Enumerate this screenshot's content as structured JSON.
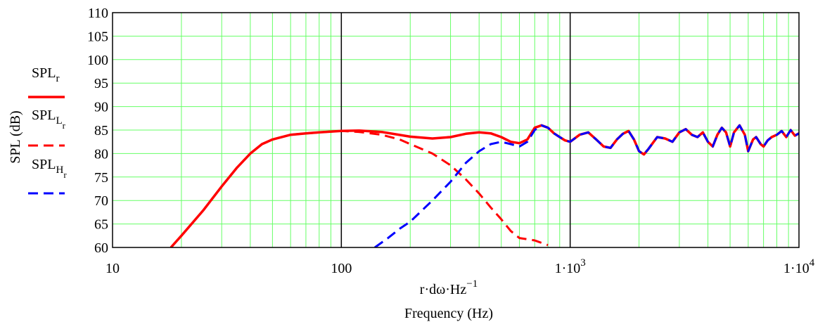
{
  "chart_data": {
    "type": "line",
    "x_scale": "log",
    "xlim": [
      10,
      10000
    ],
    "ylim": [
      60,
      110
    ],
    "grid": true,
    "x_ticks": [
      {
        "value": 10,
        "mantissa": "10",
        "exp": ""
      },
      {
        "value": 100,
        "mantissa": "100",
        "exp": ""
      },
      {
        "value": 1000,
        "mantissa": "1·10",
        "exp": "3"
      },
      {
        "value": 10000,
        "mantissa": "1·10",
        "exp": "4"
      }
    ],
    "y_ticks": [
      60,
      65,
      70,
      75,
      80,
      85,
      90,
      95,
      100,
      105,
      110
    ],
    "xlabel": {
      "expr": "r·dω·Hz",
      "exp": "−1",
      "caption": "Frequency (Hz)"
    },
    "ylabel": "SPL (dB)",
    "legend_position": "left",
    "colors": {
      "grid": "#66ff66",
      "decade": "#000000",
      "red": "#ff0000",
      "blue": "#0000ff"
    },
    "series": [
      {
        "name": "SPL_r",
        "label_main": "SPL",
        "label_sub": "r",
        "style": "solid",
        "color": "#ff0000",
        "points": [
          [
            18,
            60
          ],
          [
            20,
            62.5
          ],
          [
            25,
            68
          ],
          [
            30,
            73
          ],
          [
            35,
            77
          ],
          [
            40,
            80
          ],
          [
            45,
            82
          ],
          [
            50,
            83
          ],
          [
            60,
            84
          ],
          [
            70,
            84.3
          ],
          [
            80,
            84.5
          ],
          [
            100,
            84.8
          ],
          [
            120,
            84.9
          ],
          [
            150,
            84.6
          ],
          [
            200,
            83.6
          ],
          [
            250,
            83.2
          ],
          [
            300,
            83.5
          ],
          [
            350,
            84.2
          ],
          [
            400,
            84.5
          ],
          [
            450,
            84.3
          ],
          [
            500,
            83.5
          ],
          [
            550,
            82.5
          ],
          [
            600,
            82.2
          ],
          [
            650,
            83
          ],
          [
            700,
            85.5
          ],
          [
            750,
            86
          ],
          [
            800,
            85.5
          ],
          [
            850,
            84.3
          ],
          [
            900,
            83.5
          ],
          [
            950,
            82.8
          ],
          [
            1000,
            82.5
          ],
          [
            1100,
            84
          ],
          [
            1200,
            84.5
          ],
          [
            1300,
            83
          ],
          [
            1400,
            81.5
          ],
          [
            1500,
            81.2
          ],
          [
            1600,
            83
          ],
          [
            1700,
            84.2
          ],
          [
            1800,
            84.8
          ],
          [
            1900,
            83
          ],
          [
            2000,
            80.5
          ],
          [
            2100,
            79.8
          ],
          [
            2200,
            81
          ],
          [
            2400,
            83.5
          ],
          [
            2600,
            83.2
          ],
          [
            2800,
            82.5
          ],
          [
            3000,
            84.5
          ],
          [
            3200,
            85.2
          ],
          [
            3400,
            84
          ],
          [
            3600,
            83.5
          ],
          [
            3800,
            84.5
          ],
          [
            4000,
            82.5
          ],
          [
            4200,
            81.5
          ],
          [
            4400,
            84
          ],
          [
            4600,
            85.5
          ],
          [
            4800,
            84.5
          ],
          [
            5000,
            81.5
          ],
          [
            5200,
            84.5
          ],
          [
            5500,
            86
          ],
          [
            5800,
            84
          ],
          [
            6000,
            80.5
          ],
          [
            6300,
            83
          ],
          [
            6500,
            83.5
          ],
          [
            6800,
            82
          ],
          [
            7000,
            81.5
          ],
          [
            7300,
            82.8
          ],
          [
            7600,
            83.5
          ],
          [
            8000,
            84
          ],
          [
            8400,
            84.8
          ],
          [
            8800,
            83.5
          ],
          [
            9200,
            85
          ],
          [
            9600,
            83.8
          ],
          [
            10000,
            84.3
          ]
        ]
      },
      {
        "name": "SPL_L_r",
        "label_main": "SPL",
        "label_sub": "L",
        "label_subsub": "r",
        "style": "dashed",
        "color": "#ff0000",
        "points": [
          [
            18,
            60
          ],
          [
            20,
            62.5
          ],
          [
            25,
            68
          ],
          [
            30,
            73
          ],
          [
            35,
            77
          ],
          [
            40,
            80
          ],
          [
            45,
            82
          ],
          [
            50,
            83
          ],
          [
            60,
            84
          ],
          [
            70,
            84.3
          ],
          [
            80,
            84.5
          ],
          [
            100,
            84.8
          ],
          [
            120,
            84.6
          ],
          [
            150,
            84
          ],
          [
            180,
            83
          ],
          [
            200,
            82
          ],
          [
            250,
            80
          ],
          [
            300,
            77.5
          ],
          [
            350,
            74.5
          ],
          [
            400,
            71.5
          ],
          [
            450,
            68.5
          ],
          [
            500,
            66
          ],
          [
            550,
            63.5
          ],
          [
            600,
            62
          ],
          [
            700,
            61.5
          ],
          [
            800,
            60.5
          ]
        ]
      },
      {
        "name": "SPL_H_r",
        "label_main": "SPL",
        "label_sub": "H",
        "label_subsub": "r",
        "style": "dashed",
        "color": "#0000ff",
        "points": [
          [
            140,
            60
          ],
          [
            160,
            62
          ],
          [
            180,
            64
          ],
          [
            200,
            65.5
          ],
          [
            250,
            70
          ],
          [
            300,
            74
          ],
          [
            350,
            78
          ],
          [
            400,
            80.5
          ],
          [
            450,
            82
          ],
          [
            500,
            82.5
          ],
          [
            550,
            82
          ],
          [
            600,
            81.5
          ],
          [
            650,
            82.5
          ],
          [
            700,
            85
          ],
          [
            750,
            86
          ],
          [
            800,
            85.5
          ],
          [
            850,
            84.3
          ],
          [
            900,
            83.5
          ],
          [
            950,
            82.8
          ],
          [
            1000,
            82.5
          ],
          [
            1100,
            84
          ],
          [
            1200,
            84.5
          ],
          [
            1300,
            83
          ],
          [
            1400,
            81.5
          ],
          [
            1500,
            81.2
          ],
          [
            1600,
            83
          ],
          [
            1700,
            84.2
          ],
          [
            1800,
            84.8
          ],
          [
            1900,
            83
          ],
          [
            2000,
            80.5
          ],
          [
            2100,
            79.8
          ],
          [
            2200,
            81
          ],
          [
            2400,
            83.5
          ],
          [
            2600,
            83.2
          ],
          [
            2800,
            82.5
          ],
          [
            3000,
            84.5
          ],
          [
            3200,
            85.2
          ],
          [
            3400,
            84
          ],
          [
            3600,
            83.5
          ],
          [
            3800,
            84.5
          ],
          [
            4000,
            82.5
          ],
          [
            4200,
            81.5
          ],
          [
            4400,
            84
          ],
          [
            4600,
            85.5
          ],
          [
            4800,
            84.5
          ],
          [
            5000,
            81.5
          ],
          [
            5200,
            84.5
          ],
          [
            5500,
            86
          ],
          [
            5800,
            84
          ],
          [
            6000,
            80.5
          ],
          [
            6300,
            83
          ],
          [
            6500,
            83.5
          ],
          [
            6800,
            82
          ],
          [
            7000,
            81.5
          ],
          [
            7300,
            82.8
          ],
          [
            7600,
            83.5
          ],
          [
            8000,
            84
          ],
          [
            8400,
            84.8
          ],
          [
            8800,
            83.5
          ],
          [
            9200,
            85
          ],
          [
            9600,
            83.8
          ],
          [
            10000,
            84.3
          ]
        ]
      }
    ]
  }
}
